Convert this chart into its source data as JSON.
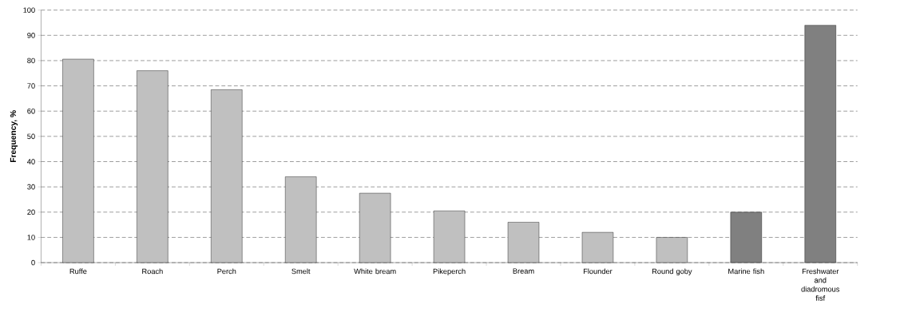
{
  "chart_data": {
    "type": "bar",
    "ylabel": "Frequency, %",
    "categories": [
      "Ruffe",
      "Roach",
      "Perch",
      "Smelt",
      "White bream",
      "Pikeperch",
      "Bream",
      "Flounder",
      "Round goby",
      "Marine fish",
      "Freshwater and diadromous fisf"
    ],
    "values": [
      80.6,
      76,
      68.5,
      34,
      27.5,
      20.5,
      16,
      12,
      10,
      20,
      94
    ],
    "colors": [
      "#c0c0c0",
      "#c0c0c0",
      "#c0c0c0",
      "#c0c0c0",
      "#c0c0c0",
      "#c0c0c0",
      "#c0c0c0",
      "#c0c0c0",
      "#c0c0c0",
      "#808080",
      "#808080"
    ],
    "ylim": [
      0,
      100
    ],
    "yticks": [
      0,
      10,
      20,
      30,
      40,
      50,
      60,
      70,
      80,
      90,
      100
    ],
    "grid": "y"
  }
}
